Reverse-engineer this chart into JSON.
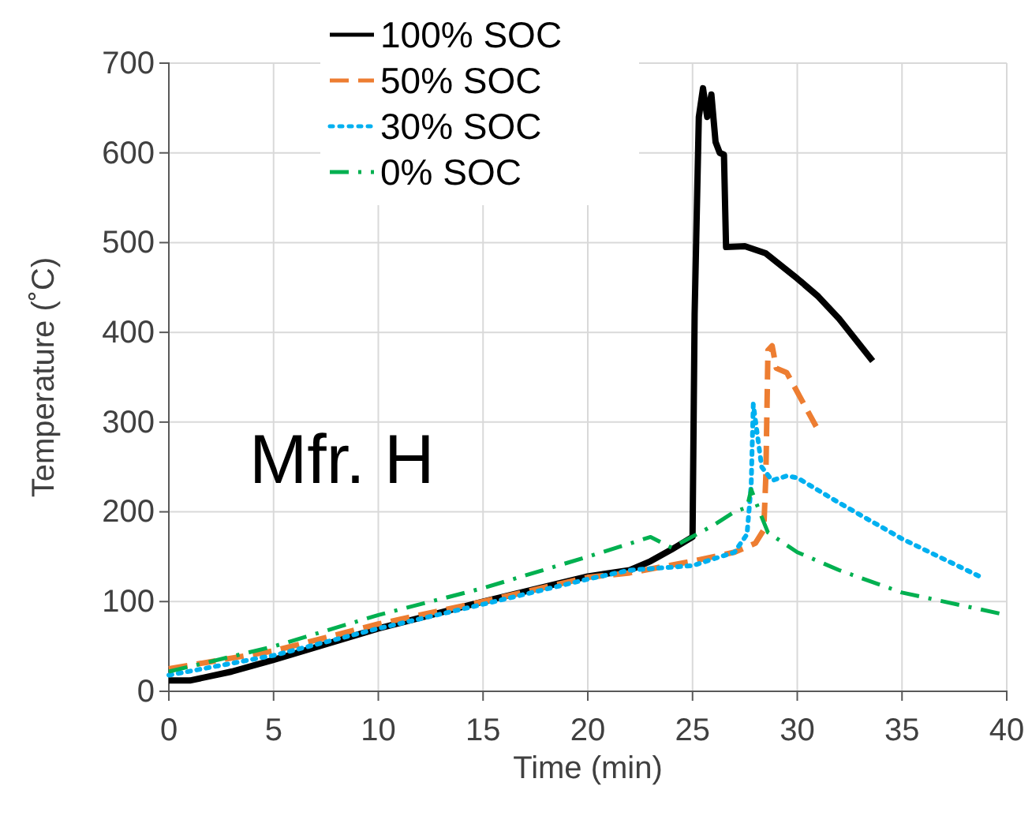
{
  "chart_data": {
    "type": "line",
    "xlabel": "Time (min)",
    "ylabel": "Temperature (˚C)",
    "xlim": [
      0,
      40
    ],
    "ylim": [
      0,
      700
    ],
    "xticks": [
      0,
      5,
      10,
      15,
      20,
      25,
      30,
      35,
      40
    ],
    "yticks": [
      0,
      100,
      200,
      300,
      400,
      500,
      600,
      700
    ],
    "grid": true,
    "legend": "top",
    "marker": "none",
    "annotations": [
      "Mfr. H"
    ],
    "series": [
      {
        "name": "100% SOC",
        "color": "#000000",
        "line_style": "solid",
        "x": [
          0,
          1,
          3,
          5,
          10,
          15,
          20,
          22,
          23,
          24,
          25,
          25.1,
          25.3,
          25.5,
          25.7,
          25.9,
          26.1,
          26.3,
          26.5,
          26.6,
          27.5,
          28.5,
          30,
          31,
          32,
          33.6
        ],
        "values": [
          12,
          12,
          22,
          35,
          70,
          100,
          128,
          135,
          145,
          158,
          172,
          420,
          640,
          672,
          640,
          665,
          612,
          600,
          598,
          495,
          496,
          488,
          460,
          440,
          415,
          368
        ]
      },
      {
        "name": "50% SOC",
        "color": "#ed7d31",
        "line_style": "dashed",
        "x": [
          0,
          5,
          10,
          15,
          20,
          22,
          25,
          27,
          28,
          28.4,
          28.5,
          28.6,
          28.8,
          29,
          29.5,
          30.9
        ],
        "values": [
          25,
          45,
          75,
          100,
          127,
          132,
          145,
          155,
          165,
          180,
          240,
          380,
          385,
          360,
          355,
          295
        ]
      },
      {
        "name": "30% SOC",
        "color": "#00b0f0",
        "line_style": "dotted",
        "x": [
          0,
          5,
          10,
          15,
          20,
          22,
          25,
          27,
          27.6,
          27.8,
          27.9,
          28.3,
          28.8,
          29.5,
          30,
          32,
          35,
          38.7
        ],
        "values": [
          18,
          40,
          70,
          97,
          125,
          135,
          140,
          155,
          175,
          230,
          320,
          250,
          235,
          240,
          238,
          210,
          170,
          128
        ]
      },
      {
        "name": "0% SOC",
        "color": "#00b050",
        "line_style": "dashdot",
        "x": [
          0,
          5,
          10,
          15,
          20,
          23,
          24,
          26,
          27,
          27.6,
          27.8,
          28.2,
          28.6,
          30,
          32,
          35,
          38,
          40
        ],
        "values": [
          22,
          50,
          85,
          115,
          150,
          172,
          160,
          185,
          200,
          205,
          225,
          200,
          177,
          155,
          135,
          110,
          95,
          85
        ]
      }
    ]
  }
}
